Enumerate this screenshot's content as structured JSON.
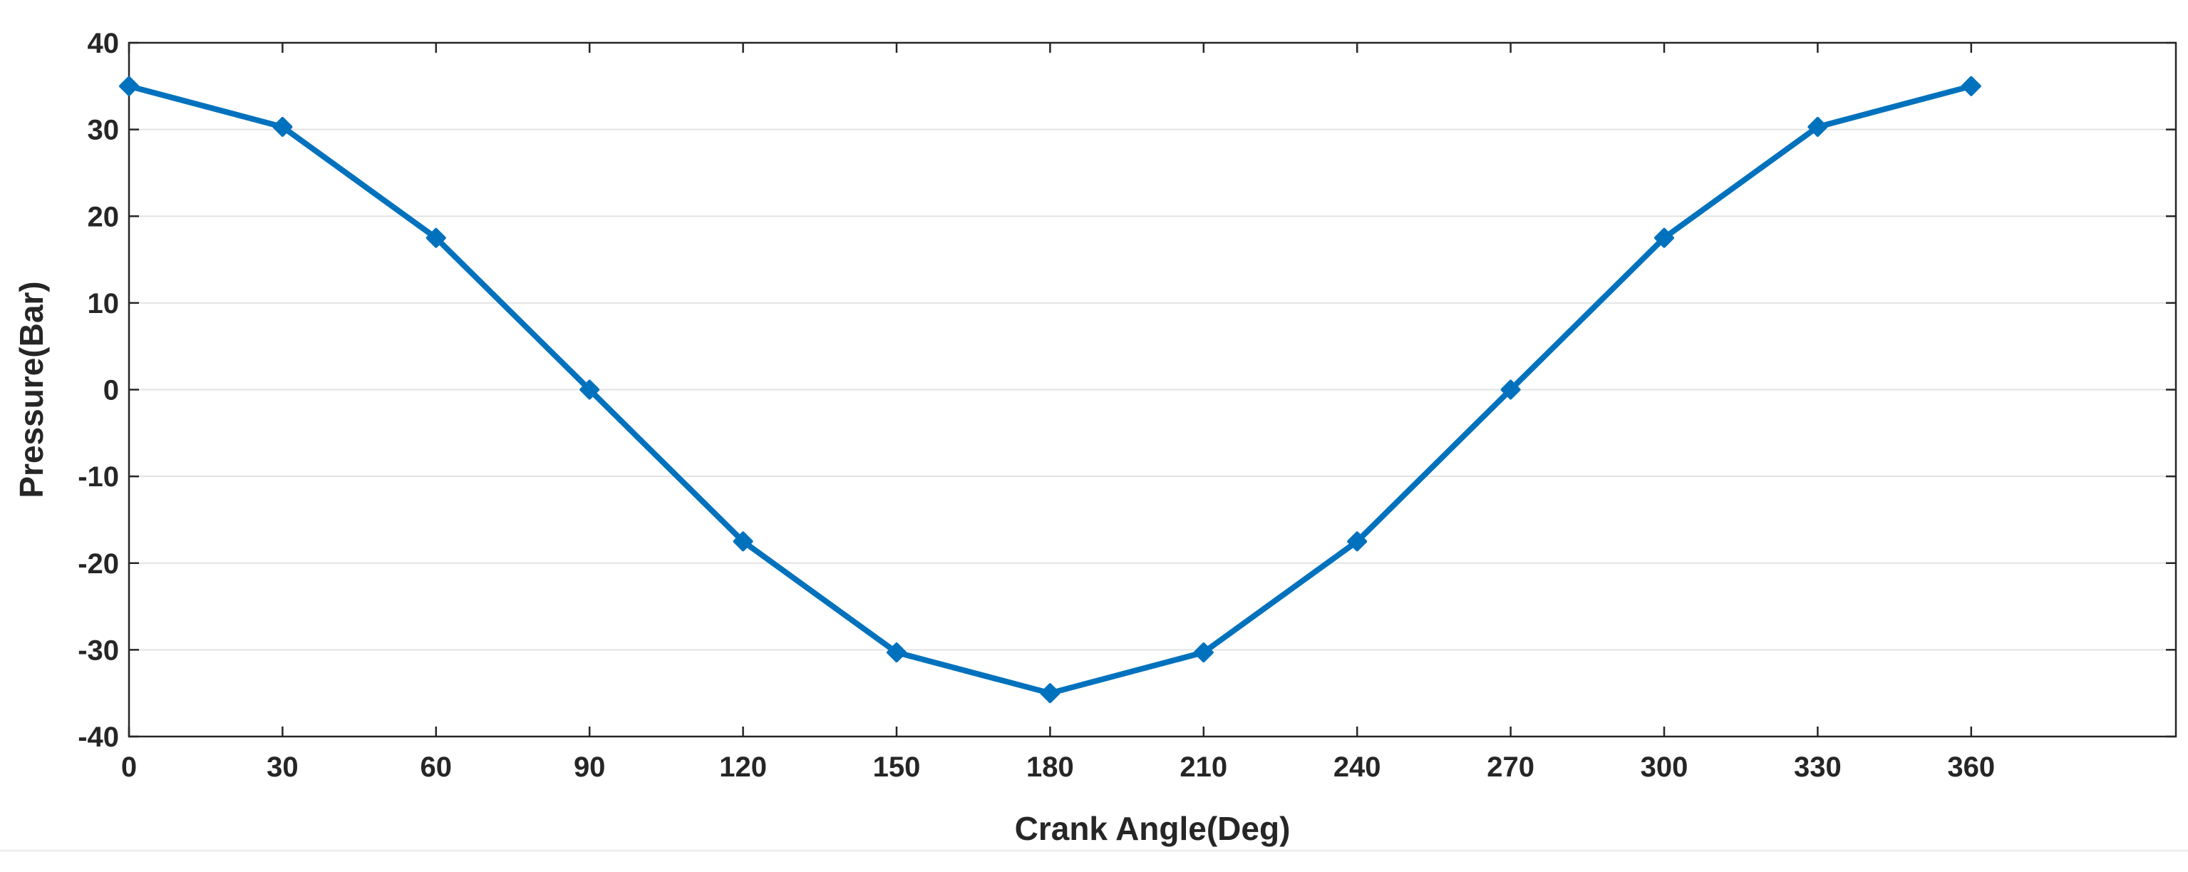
{
  "chart_data": {
    "type": "line",
    "title": "",
    "xlabel": "Crank Angle(Deg)",
    "ylabel": "Pressure(Bar)",
    "xlim": [
      0,
      400
    ],
    "ylim": [
      -40,
      40
    ],
    "xticks": [
      0,
      30,
      60,
      90,
      120,
      150,
      180,
      210,
      240,
      270,
      300,
      330,
      360
    ],
    "yticks": [
      -40,
      -30,
      -20,
      -10,
      0,
      10,
      20,
      30,
      40
    ],
    "grid": {
      "horizontal": true,
      "vertical": false
    },
    "series": [
      {
        "x": [
          0,
          30,
          60,
          90,
          120,
          150,
          180,
          210,
          240,
          270,
          300,
          330,
          360
        ],
        "y": [
          35,
          30.3,
          17.5,
          0,
          -17.5,
          -30.3,
          -35,
          -30.3,
          -17.5,
          0,
          17.5,
          30.3,
          35
        ],
        "color": "#0072BD",
        "marker": "diamond"
      }
    ]
  }
}
